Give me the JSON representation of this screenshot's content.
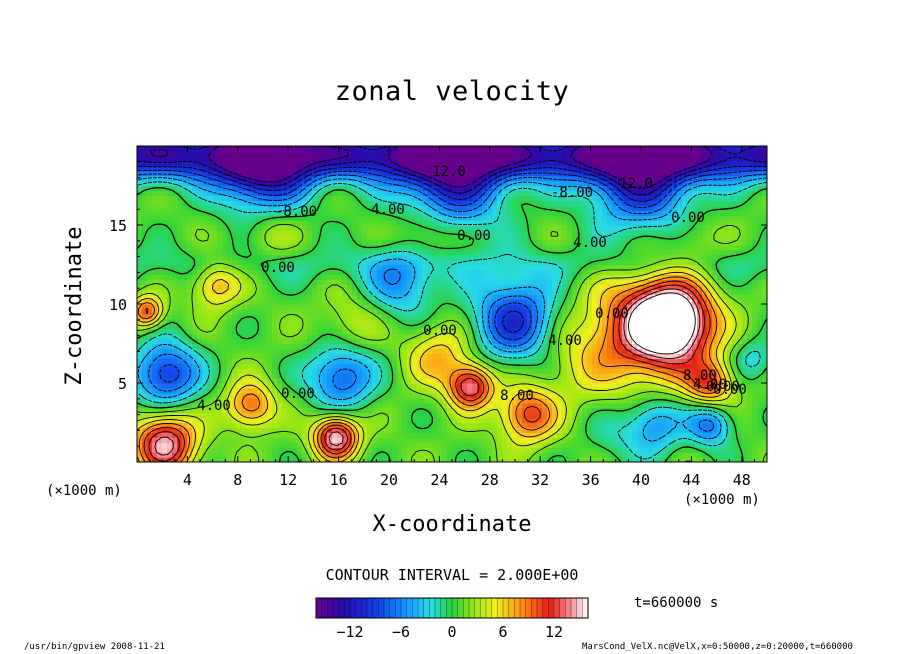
{
  "chart_data": {
    "type": "heatmap",
    "title": "zonal velocity",
    "xlabel": "X-coordinate",
    "ylabel": "Z-coordinate",
    "x_unit": "(×1000 m)",
    "y_unit": "(×1000 m)",
    "xlim": [
      0,
      50
    ],
    "ylim": [
      0,
      20
    ],
    "x_ticks": [
      4,
      8,
      12,
      16,
      20,
      24,
      28,
      32,
      36,
      40,
      44,
      48
    ],
    "y_ticks": [
      5,
      10,
      15
    ],
    "colorbar": {
      "min": -16,
      "max": 16,
      "ticks": [
        -12,
        -6,
        0,
        6,
        12
      ]
    },
    "contour_interval": "CONTOUR INTERVAL = 2.000E+00",
    "contour_labels": [
      "12.0",
      "-8.00",
      "-8.00",
      "12.0",
      "4.00",
      "0.00",
      "0.00",
      "4.00",
      "0.00",
      "0.00",
      "4.00",
      "0.00",
      "8.00",
      "8.00",
      "0.00",
      "4.00",
      "0.00",
      "4.00",
      "0.00"
    ],
    "time_label": "t=660000 s",
    "cells": [
      {
        "x": 42.5,
        "z": 8.9,
        "v": 16,
        "r": 2.6
      },
      {
        "x": 40.5,
        "z": 8.5,
        "v": 11,
        "r": 3.8
      },
      {
        "x": 45.5,
        "z": 5.0,
        "v": 9,
        "r": 1.6
      },
      {
        "x": 26.5,
        "z": 4.8,
        "v": 13,
        "r": 1.5
      },
      {
        "x": 31.0,
        "z": 3.0,
        "v": 10,
        "r": 1.9
      },
      {
        "x": 15.8,
        "z": 1.6,
        "v": 15,
        "r": 1.5
      },
      {
        "x": 2.2,
        "z": 1.2,
        "v": 14,
        "r": 2.1
      },
      {
        "x": 9.0,
        "z": 3.6,
        "v": 9,
        "r": 1.6
      },
      {
        "x": 0.8,
        "z": 9.5,
        "v": 10,
        "r": 1.1
      },
      {
        "x": 6.3,
        "z": 11.3,
        "v": 7,
        "r": 1.6
      },
      {
        "x": 17.0,
        "z": 8.8,
        "v": 3,
        "r": 2.0
      },
      {
        "x": 24.0,
        "z": 6.8,
        "v": 6,
        "r": 2.2
      },
      {
        "x": 35.0,
        "z": 6.5,
        "v": 3,
        "r": 3.0
      },
      {
        "x": 30.0,
        "z": 9.0,
        "v": -11,
        "r": 2.8
      },
      {
        "x": 16.2,
        "z": 5.4,
        "v": -9,
        "r": 2.2
      },
      {
        "x": 2.3,
        "z": 5.6,
        "v": -11,
        "r": 2.2
      },
      {
        "x": 21.0,
        "z": 11.3,
        "v": -6,
        "r": 2.4
      },
      {
        "x": 41.0,
        "z": 2.4,
        "v": -7,
        "r": 2.0
      },
      {
        "x": 45.5,
        "z": 2.4,
        "v": -8,
        "r": 1.5
      },
      {
        "x": 25.0,
        "z": 18.0,
        "v": -12,
        "r": 3.5
      },
      {
        "x": 10.0,
        "z": 18.4,
        "v": -12,
        "r": 3.0
      },
      {
        "x": 40.0,
        "z": 18.0,
        "v": -12,
        "r": 3.5
      },
      {
        "x": 23.0,
        "z": 14.5,
        "v": 4,
        "r": 2.0
      },
      {
        "x": 44.0,
        "z": 14.0,
        "v": 2,
        "r": 1.8
      },
      {
        "x": 10.5,
        "z": 14.6,
        "v": 3,
        "r": 2.0
      },
      {
        "x": 49.0,
        "z": 6.5,
        "v": -4,
        "r": 1.4
      },
      {
        "x": 37.5,
        "z": 1.5,
        "v": -2,
        "r": 1.8
      }
    ]
  },
  "page": {
    "footer_left": "/usr/bin/gpview  2008-11-21",
    "footer_right": "MarsCond_VelX.nc@VelX,x=0:50000,z=0:20000,t=660000"
  }
}
